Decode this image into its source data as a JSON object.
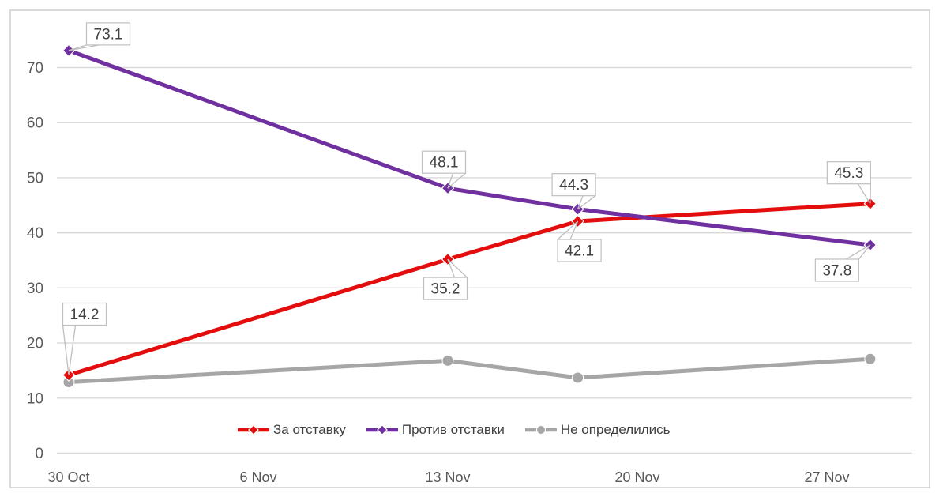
{
  "chart_data": {
    "type": "line",
    "title": "",
    "x_axis": {
      "tick_labels": [
        "30 Oct",
        "6 Nov",
        "13 Nov",
        "20 Nov",
        "27 Nov"
      ],
      "tick_day_offsets": [
        0,
        7,
        14,
        21,
        28
      ]
    },
    "y_axis": {
      "tick_labels": [
        "0",
        "10",
        "20",
        "30",
        "40",
        "50",
        "60",
        "70"
      ],
      "tick_values": [
        0,
        10,
        20,
        30,
        40,
        50,
        60,
        70
      ],
      "range": [
        0,
        77.5
      ]
    },
    "grid": {
      "horizontal": true,
      "vertical": false,
      "color": "#D9D9D9"
    },
    "legend_position": "bottom-inside",
    "series": [
      {
        "id": "za-otstavku",
        "name": "За отставку",
        "color": "#E30D0D",
        "marker": "diamond",
        "x_days": [
          0,
          14,
          18.8,
          29.6
        ],
        "values": [
          14.2,
          35.2,
          42.1,
          45.3
        ],
        "labels": [
          {
            "text": "14.2",
            "dx": 20,
            "dy": -77
          },
          {
            "text": "35.2",
            "dx": -3,
            "dy": 37
          },
          {
            "text": "42.1",
            "dx": 2,
            "dy": 37
          },
          {
            "text": "45.3",
            "dx": -27,
            "dy": -39
          }
        ]
      },
      {
        "id": "protiv-otstavki",
        "name": "Против отставки",
        "color": "#7030A0",
        "marker": "diamond",
        "x_days": [
          0,
          14,
          18.8,
          29.6
        ],
        "values": [
          73.1,
          48.1,
          44.3,
          37.8
        ],
        "labels": [
          {
            "text": "73.1",
            "dx": 50,
            "dy": -21
          },
          {
            "text": "48.1",
            "dx": -5,
            "dy": -33
          },
          {
            "text": "44.3",
            "dx": -5,
            "dy": -31
          },
          {
            "text": "37.8",
            "dx": -42,
            "dy": 32
          }
        ]
      },
      {
        "id": "ne-opredelilis",
        "name": "Не определились",
        "color": "#A6A6A6",
        "marker": "circle",
        "x_days": [
          0,
          14,
          18.8,
          29.6
        ],
        "values": [
          12.9,
          16.8,
          13.7,
          17.1
        ],
        "labels": [
          null,
          null,
          null,
          null
        ]
      }
    ],
    "label_style": {
      "bg": "#FFFFFF",
      "border": "#BFBFBF",
      "text_color": "#404040"
    },
    "axis_text_color": "#595959",
    "z_order": [
      2,
      0,
      1
    ]
  }
}
